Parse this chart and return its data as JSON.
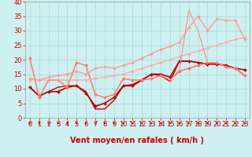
{
  "title": "",
  "xlabel": "Vent moyen/en rafales ( km/h )",
  "ylabel": "",
  "xlim": [
    -0.5,
    23.5
  ],
  "ylim": [
    0,
    40
  ],
  "xticks": [
    0,
    1,
    2,
    3,
    4,
    5,
    6,
    7,
    8,
    9,
    10,
    11,
    12,
    13,
    14,
    15,
    16,
    17,
    18,
    19,
    20,
    21,
    22,
    23
  ],
  "yticks": [
    0,
    5,
    10,
    15,
    20,
    25,
    30,
    35,
    40
  ],
  "bg_color": "#cff0f0",
  "grid_color": "#aadddd",
  "series": [
    {
      "x": [
        0,
        1,
        2,
        3,
        4,
        5,
        6,
        7,
        8,
        9,
        10,
        11,
        12,
        13,
        14,
        15,
        16,
        17,
        18,
        19,
        20,
        21,
        22,
        23
      ],
      "y": [
        10.5,
        7.5,
        9,
        9,
        10.5,
        11,
        8.5,
        4,
        5,
        7,
        11,
        11,
        13,
        15,
        15,
        14,
        19.5,
        19.5,
        19,
        18.5,
        18.5,
        18,
        17,
        16.5
      ],
      "color": "#bb0000",
      "lw": 1.2,
      "marker": "D",
      "ms": 2.0
    },
    {
      "x": [
        0,
        1,
        2,
        3,
        4,
        5,
        6,
        7,
        8,
        9,
        10,
        11,
        12,
        13,
        14,
        15,
        16,
        17,
        18,
        19,
        20,
        21,
        22,
        23
      ],
      "y": [
        10.5,
        7.5,
        9,
        10.5,
        11,
        11,
        9,
        3,
        3,
        6,
        11,
        11.5,
        13,
        15,
        14.5,
        12.5,
        19.5,
        19.5,
        19,
        18.5,
        18.5,
        18,
        17,
        14.5
      ],
      "color": "#bb0000",
      "lw": 1.0,
      "marker": null,
      "ms": 0
    },
    {
      "x": [
        0,
        1,
        2,
        3,
        4,
        5,
        6,
        7,
        8,
        9,
        10,
        11,
        12,
        13,
        14,
        15,
        16,
        17,
        18,
        19,
        20,
        21,
        22,
        23
      ],
      "y": [
        20.5,
        7,
        13,
        13,
        10.5,
        19,
        18,
        8,
        7,
        8,
        13.5,
        13,
        13,
        13.5,
        14.5,
        13,
        16,
        17,
        18,
        19,
        19,
        17.5,
        17,
        14.5
      ],
      "color": "#ff6666",
      "lw": 1.0,
      "marker": "D",
      "ms": 2.0
    },
    {
      "x": [
        0,
        1,
        2,
        3,
        4,
        5,
        6,
        7,
        8,
        9,
        10,
        11,
        12,
        13,
        14,
        15,
        16,
        17,
        18,
        19,
        20,
        21,
        22,
        23
      ],
      "y": [
        13,
        13,
        13,
        13,
        13,
        13,
        13,
        13.5,
        14,
        14.5,
        15,
        16,
        17,
        18,
        19,
        20,
        21,
        22,
        23,
        24,
        25,
        26,
        27,
        27.5
      ],
      "color": "#ffaaaa",
      "lw": 1.0,
      "marker": "D",
      "ms": 1.8
    },
    {
      "x": [
        0,
        1,
        2,
        3,
        4,
        5,
        6,
        7,
        8,
        9,
        10,
        11,
        12,
        13,
        14,
        15,
        16,
        17,
        18,
        19,
        20,
        21,
        22,
        23
      ],
      "y": [
        13.5,
        13,
        14,
        14.5,
        15,
        16,
        15,
        17,
        17.5,
        17,
        18,
        19,
        20.5,
        22,
        23.5,
        24.5,
        26,
        31,
        35,
        30,
        34,
        33.5,
        33.5,
        27
      ],
      "color": "#ff9999",
      "lw": 1.0,
      "marker": "D",
      "ms": 1.8
    },
    {
      "x": [
        0,
        1,
        2,
        3,
        4,
        5,
        6,
        7,
        8,
        9,
        10,
        11,
        12,
        13,
        14,
        15,
        16,
        17,
        18,
        19,
        20,
        21,
        22,
        23
      ],
      "y": [
        20.5,
        7,
        13,
        13,
        10.5,
        19,
        18,
        8,
        7,
        8,
        13.5,
        13,
        13,
        13.5,
        14.5,
        13,
        16.5,
        37,
        30,
        19,
        19,
        17.5,
        17,
        14.5
      ],
      "color": "#ff8888",
      "lw": 0.8,
      "marker": null,
      "ms": 0
    }
  ],
  "arrow_color": "#cc0000",
  "xlabel_color": "#cc0000",
  "xlabel_fontsize": 7,
  "tick_fontsize": 6
}
